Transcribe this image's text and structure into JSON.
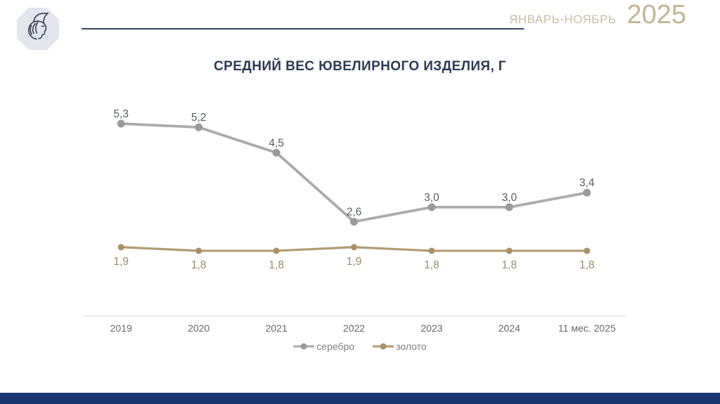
{
  "header": {
    "logo_name": "assay-chamber-logo",
    "period_label": "ЯНВАРЬ-НОЯБРЬ",
    "year": "2025"
  },
  "title": "СРЕДНИЙ ВЕС ЮВЕЛИРНОГО ИЗДЕЛИЯ, Г",
  "colors": {
    "footer_navy": "#1b3470",
    "header_line": "#33475f",
    "period_text": "#c9bda3",
    "year_text": "#c3b492",
    "title_text": "#2b3a55",
    "axis_line": "#d6d6d6",
    "axis_label": "#666666",
    "legend_text": "#7f7f7f",
    "silver": "#ababab",
    "gold": "#b39c71"
  },
  "chart_data": {
    "type": "line",
    "title": "СРЕДНИЙ ВЕС ЮВЕЛИРНОГО ИЗДЕЛИЯ, Г",
    "categories": [
      "2019",
      "2020",
      "2021",
      "2022",
      "2023",
      "2024",
      "11 мес. 2025"
    ],
    "series": [
      {
        "name": "серебро",
        "values": [
          5.3,
          5.2,
          4.5,
          2.6,
          3.0,
          3.0,
          3.4
        ],
        "labels": [
          "5,3",
          "5,2",
          "4,5",
          "2,6",
          "3,0",
          "3,0",
          "3,4"
        ],
        "color": "#ababab",
        "marker_color": "#9b9b9b",
        "label_color": "#565c60",
        "label_position": "above"
      },
      {
        "name": "золото",
        "values": [
          1.9,
          1.8,
          1.8,
          1.9,
          1.8,
          1.8,
          1.8
        ],
        "labels": [
          "1,9",
          "1,8",
          "1,8",
          "1,9",
          "1,8",
          "1,8",
          "1,8"
        ],
        "color": "#b39c71",
        "marker_color": "#ab9164",
        "label_color": "#9c8a66",
        "label_position": "below"
      }
    ],
    "ylim": [
      0,
      6.5
    ],
    "grid": false,
    "x_axis_line": true,
    "legend_position": "bottom"
  }
}
